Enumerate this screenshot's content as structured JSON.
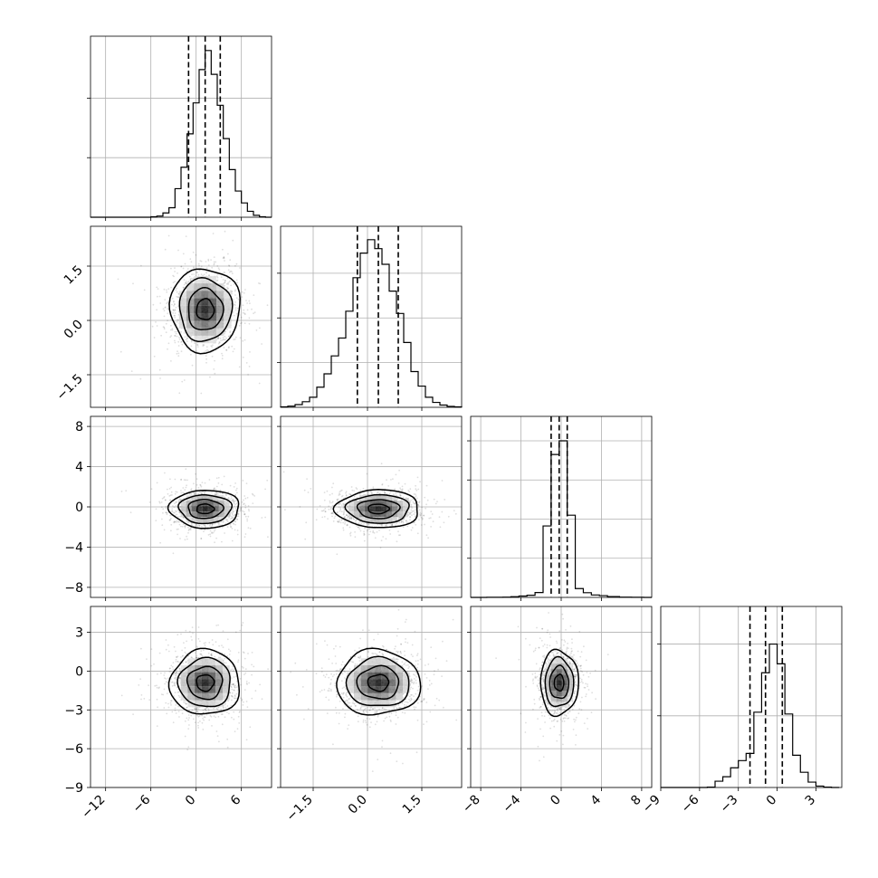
{
  "chart_data": {
    "type": "corner",
    "grid": true,
    "dimensions": 4,
    "parameters": [
      {
        "index": 0,
        "range": [
          -14,
          10
        ],
        "center": 1.2,
        "std": 2.2,
        "quantiles": [
          -1.0,
          1.2,
          3.2
        ],
        "axis_ticks": [
          -12,
          -6,
          0,
          6
        ],
        "axis_tick_labels": [
          "−12",
          "−6",
          "0",
          "6"
        ],
        "histogram": {
          "bins": [
            -14.0,
            -13.2,
            -12.4,
            -11.6,
            -10.8,
            -10.0,
            -9.2,
            -8.4,
            -7.6,
            -6.8,
            -6.0,
            -5.2,
            -4.4,
            -3.6,
            -2.8,
            -2.0,
            -1.2,
            -0.4,
            0.4,
            1.2,
            2.0,
            2.8,
            3.6,
            4.4,
            5.2,
            6.0,
            6.8,
            7.6,
            8.4,
            9.2,
            10.0
          ],
          "counts": [
            0,
            0,
            0,
            0,
            0,
            0,
            0,
            0,
            0,
            0,
            2,
            5,
            18,
            40,
            120,
            210,
            350,
            480,
            620,
            700,
            600,
            470,
            330,
            200,
            110,
            60,
            25,
            8,
            2,
            0
          ]
        },
        "hist_ylim": [
          0,
          760
        ],
        "hist_yticks": [
          250,
          500
        ]
      },
      {
        "index": 1,
        "range": [
          -2.4,
          2.6
        ],
        "center": 0.3,
        "std": 0.55,
        "quantiles": [
          -0.28,
          0.3,
          0.85
        ],
        "axis_ticks": [
          -1.5,
          0.0,
          1.5
        ],
        "axis_tick_labels": [
          "−1.5",
          "0.0",
          "1.5"
        ],
        "histogram": {
          "bins": [
            -2.4,
            -2.2,
            -2.0,
            -1.8,
            -1.6,
            -1.4,
            -1.2,
            -1.0,
            -0.8,
            -0.6,
            -0.4,
            -0.2,
            0.0,
            0.2,
            0.4,
            0.6,
            0.8,
            1.0,
            1.2,
            1.4,
            1.6,
            1.8,
            2.0,
            2.2,
            2.4,
            2.6
          ],
          "counts": [
            2,
            5,
            12,
            25,
            45,
            90,
            150,
            230,
            310,
            430,
            580,
            690,
            750,
            710,
            640,
            520,
            420,
            290,
            160,
            95,
            45,
            22,
            10,
            4,
            2
          ]
        },
        "hist_ylim": [
          0,
          810
        ],
        "hist_yticks": [
          200,
          400,
          600
        ],
        "ylabel_ticks": [
          -1.5,
          0.0,
          1.5
        ],
        "ylabel_tick_labels": [
          "−1.5",
          "0.0",
          "1.5"
        ]
      },
      {
        "index": 2,
        "range": [
          -9,
          9
        ],
        "center": -0.2,
        "std": 0.9,
        "quantiles": [
          -1.0,
          -0.2,
          0.6
        ],
        "axis_ticks": [
          -8,
          -4,
          0,
          4,
          8
        ],
        "axis_tick_labels": [
          "−8",
          "−4",
          "0",
          "4",
          "8"
        ],
        "histogram": {
          "bins": [
            -9.0,
            -8.2,
            -7.4,
            -6.6,
            -5.8,
            -5.0,
            -4.2,
            -3.4,
            -2.6,
            -1.8,
            -1.0,
            -0.2,
            0.6,
            1.4,
            2.2,
            3.0,
            3.8,
            4.6,
            5.8,
            7.0,
            8.2,
            9.0
          ],
          "counts": [
            0,
            0,
            1,
            1,
            3,
            7,
            14,
            22,
            50,
            730,
            1460,
            1600,
            840,
            90,
            48,
            25,
            18,
            8,
            3,
            1,
            0
          ]
        },
        "hist_ylim": [
          0,
          1850
        ],
        "hist_yticks": [
          400,
          800,
          1200,
          1600
        ],
        "ylabel_ticks": [
          -8,
          -4,
          0,
          4,
          8
        ],
        "ylabel_tick_labels": [
          "−8",
          "−4",
          "0",
          "4",
          "8"
        ]
      },
      {
        "index": 3,
        "range": [
          -9,
          5
        ],
        "center": -0.9,
        "std": 1.2,
        "quantiles": [
          -2.1,
          -0.9,
          0.4
        ],
        "axis_ticks": [
          -9,
          -6,
          -3,
          0,
          3
        ],
        "axis_tick_labels": [
          "−9",
          "−6",
          "−3",
          "0",
          "3"
        ],
        "histogram": {
          "bins": [
            -9.0,
            -8.4,
            -7.8,
            -7.2,
            -6.6,
            -6.0,
            -5.4,
            -4.8,
            -4.2,
            -3.6,
            -3.0,
            -2.4,
            -1.8,
            -1.2,
            -0.6,
            0.0,
            0.6,
            1.2,
            1.8,
            2.4,
            3.0,
            3.6,
            4.2,
            4.8
          ],
          "counts": [
            0,
            0,
            0,
            0,
            0,
            0,
            2,
            35,
            60,
            110,
            150,
            190,
            420,
            640,
            800,
            690,
            410,
            180,
            85,
            30,
            8,
            2,
            0
          ]
        },
        "hist_ylim": [
          0,
          1010
        ],
        "hist_yticks": [
          400,
          800
        ],
        "ylabel_ticks": [
          -9,
          -6,
          -3,
          0,
          3
        ],
        "ylabel_tick_labels": [
          "−9",
          "−6",
          "−3",
          "0",
          "3"
        ]
      }
    ],
    "pairs": [
      {
        "x": 0,
        "y": 1,
        "rho": 0.0
      },
      {
        "x": 0,
        "y": 2,
        "rho": 0.0
      },
      {
        "x": 1,
        "y": 2,
        "rho": 0.0
      },
      {
        "x": 0,
        "y": 3,
        "rho": 0.0
      },
      {
        "x": 1,
        "y": 3,
        "rho": 0.0
      },
      {
        "x": 2,
        "y": 3,
        "rho": 0.0
      }
    ],
    "scatter_points_per_panel": 1400,
    "contour_levels_sigma": [
      0.5,
      1.0,
      1.5,
      2.0
    ]
  }
}
